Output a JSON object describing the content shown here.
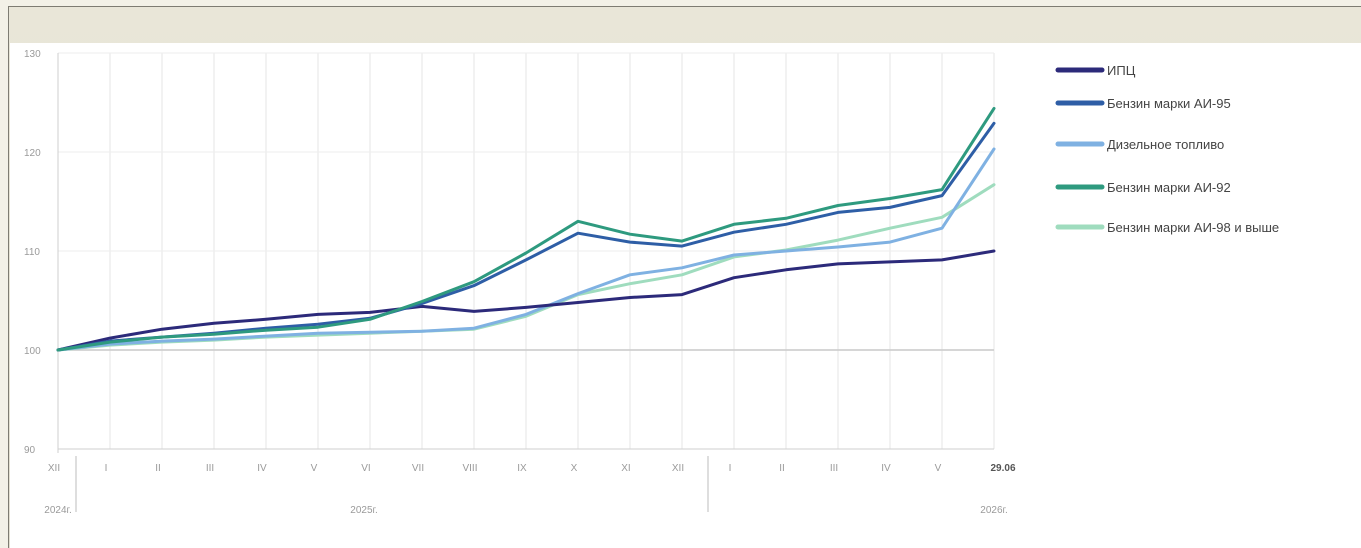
{
  "chart_data": {
    "type": "line",
    "title": "",
    "xlabel": "",
    "ylabel": "",
    "ylim": [
      90,
      130
    ],
    "yticks": [
      "90",
      "100",
      "110",
      "120",
      "130"
    ],
    "categories": [
      "XII",
      "I",
      "II",
      "III",
      "IV",
      "V",
      "VI",
      "VII",
      "VIII",
      "IX",
      "X",
      "XI",
      "XII",
      "I",
      "II",
      "III",
      "IV",
      "V",
      "29.06"
    ],
    "year_labels": [
      "2024г.",
      "2025г.",
      "2026г."
    ],
    "grid": true,
    "legend_position": "right",
    "series": [
      {
        "name": "ИПЦ",
        "color": "#2c2a7a",
        "values": [
          100,
          101.2,
          102.1,
          102.7,
          103.1,
          103.6,
          103.8,
          104.4,
          103.9,
          104.3,
          104.8,
          105.3,
          105.6,
          107.3,
          108.1,
          108.7,
          108.9,
          109.1,
          110
        ]
      },
      {
        "name": "Бензин марки АИ-95",
        "color": "#2e5ea6",
        "values": [
          100,
          100.9,
          101.3,
          101.7,
          102.2,
          102.6,
          103.2,
          104.7,
          106.5,
          109.1,
          111.8,
          110.9,
          110.5,
          111.9,
          112.7,
          113.9,
          114.4,
          115.6,
          122.9
        ]
      },
      {
        "name": "Дизельное топливо",
        "color": "#7fb1e2",
        "values": [
          100,
          100.6,
          100.9,
          101.1,
          101.4,
          101.7,
          101.8,
          101.9,
          102.2,
          103.6,
          105.7,
          107.6,
          108.3,
          109.6,
          110,
          110.4,
          110.9,
          112.3,
          120.3
        ]
      },
      {
        "name": "Бензин марки АИ-92",
        "color": "#2e9a7f",
        "values": [
          100,
          100.8,
          101.3,
          101.6,
          102,
          102.3,
          103.1,
          104.9,
          106.9,
          109.8,
          113,
          111.7,
          111,
          112.7,
          113.3,
          114.6,
          115.3,
          116.2,
          124.4
        ]
      },
      {
        "name": "Бензин марки АИ-98 и выше",
        "color": "#9fdcbe",
        "values": [
          100,
          100.5,
          100.8,
          101,
          101.3,
          101.5,
          101.7,
          101.9,
          102.1,
          103.4,
          105.6,
          106.7,
          107.6,
          109.4,
          110.1,
          111.1,
          112.3,
          113.4,
          116.7
        ]
      }
    ]
  }
}
